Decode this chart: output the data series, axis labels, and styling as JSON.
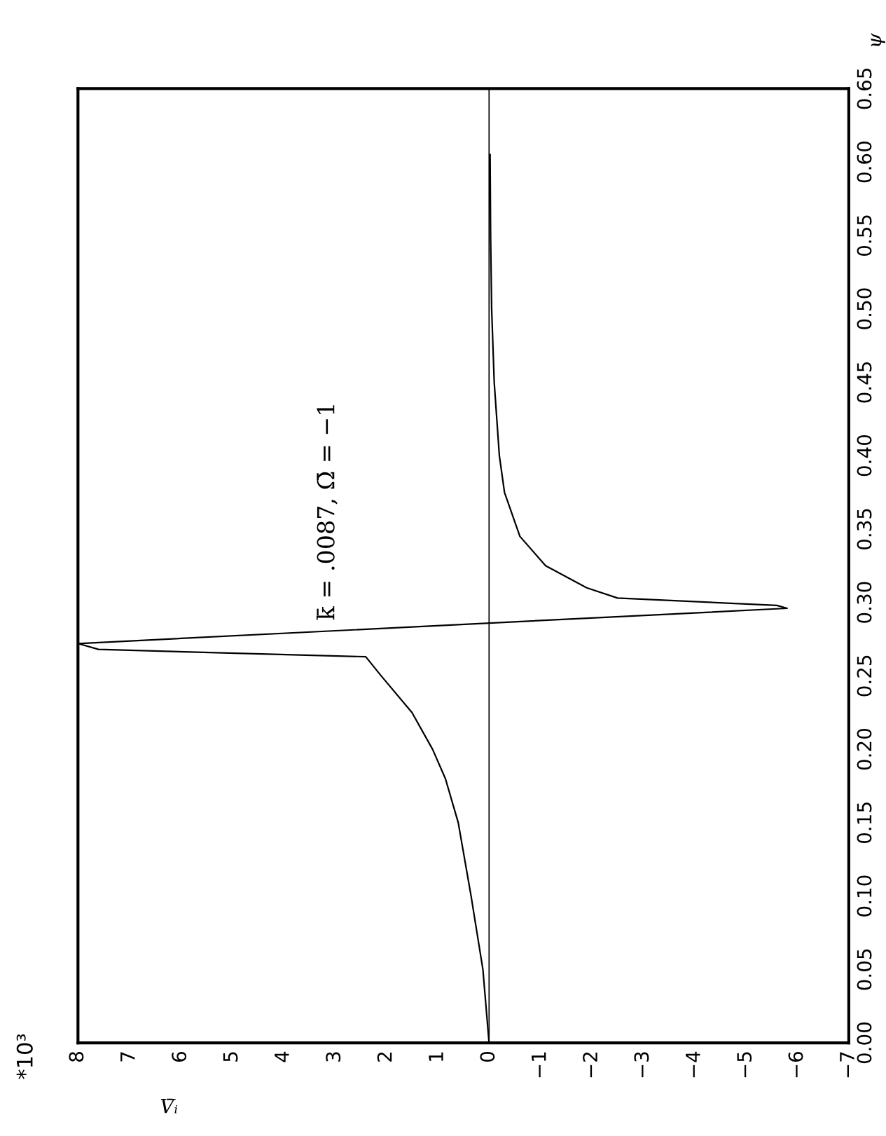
{
  "chart_data": {
    "type": "line",
    "xlabel": "V̄ᵢ",
    "ylabel": "ψ",
    "annotations": [
      "k̄ = .0087, Ω̄ = −1",
      "*10³"
    ],
    "x": [
      0.0,
      0.12,
      0.35,
      0.6,
      0.85,
      1.1,
      1.5,
      2.1,
      2.4,
      7.6,
      8.0,
      -5.8,
      -5.6,
      -2.5,
      -1.9,
      -1.1,
      -0.6,
      -0.3,
      -0.2,
      -0.1,
      -0.05,
      -0.03,
      -0.02
    ],
    "series": [
      {
        "color": "#000000",
        "values": [
          0.0,
          0.05,
          0.1,
          0.15,
          0.18,
          0.2,
          0.225,
          0.25,
          0.263,
          0.268,
          0.272,
          0.296,
          0.298,
          0.303,
          0.31,
          0.325,
          0.345,
          0.375,
          0.4,
          0.45,
          0.5,
          0.55,
          0.605
        ]
      }
    ],
    "ylim": [
      0.0,
      0.65
    ],
    "yticks": [
      {
        "value": 0.0,
        "label": "0.00"
      },
      {
        "value": 0.05,
        "label": "0.05"
      },
      {
        "value": 0.1,
        "label": "0.10"
      },
      {
        "value": 0.15,
        "label": "0.15"
      },
      {
        "value": 0.2,
        "label": "0.20"
      },
      {
        "value": 0.25,
        "label": "0.25"
      },
      {
        "value": 0.3,
        "label": "0.30"
      },
      {
        "value": 0.35,
        "label": "0.35"
      },
      {
        "value": 0.4,
        "label": "0.40"
      },
      {
        "value": 0.45,
        "label": "0.45"
      },
      {
        "value": 0.5,
        "label": "0.50"
      },
      {
        "value": 0.55,
        "label": "0.55"
      },
      {
        "value": 0.6,
        "label": "0.60"
      },
      {
        "value": 0.65,
        "label": "0.65"
      }
    ],
    "xlim": [
      8,
      -7
    ],
    "xticks": [
      8,
      7,
      6,
      5,
      4,
      3,
      2,
      1,
      0,
      {
        "value": -1,
        "label": "−1"
      },
      {
        "value": -2,
        "label": "−2"
      },
      {
        "value": -3,
        "label": "−3"
      },
      {
        "value": -4,
        "label": "−4"
      },
      {
        "value": -5,
        "label": "−5"
      },
      {
        "value": -6,
        "label": "−6"
      },
      {
        "value": -7,
        "label": "−7"
      }
    ],
    "ref_lines": [
      {
        "axis": "x",
        "value": 0,
        "color": "#000000"
      }
    ],
    "grid": false,
    "legend": false,
    "marker": "none",
    "line_style": "solid"
  }
}
